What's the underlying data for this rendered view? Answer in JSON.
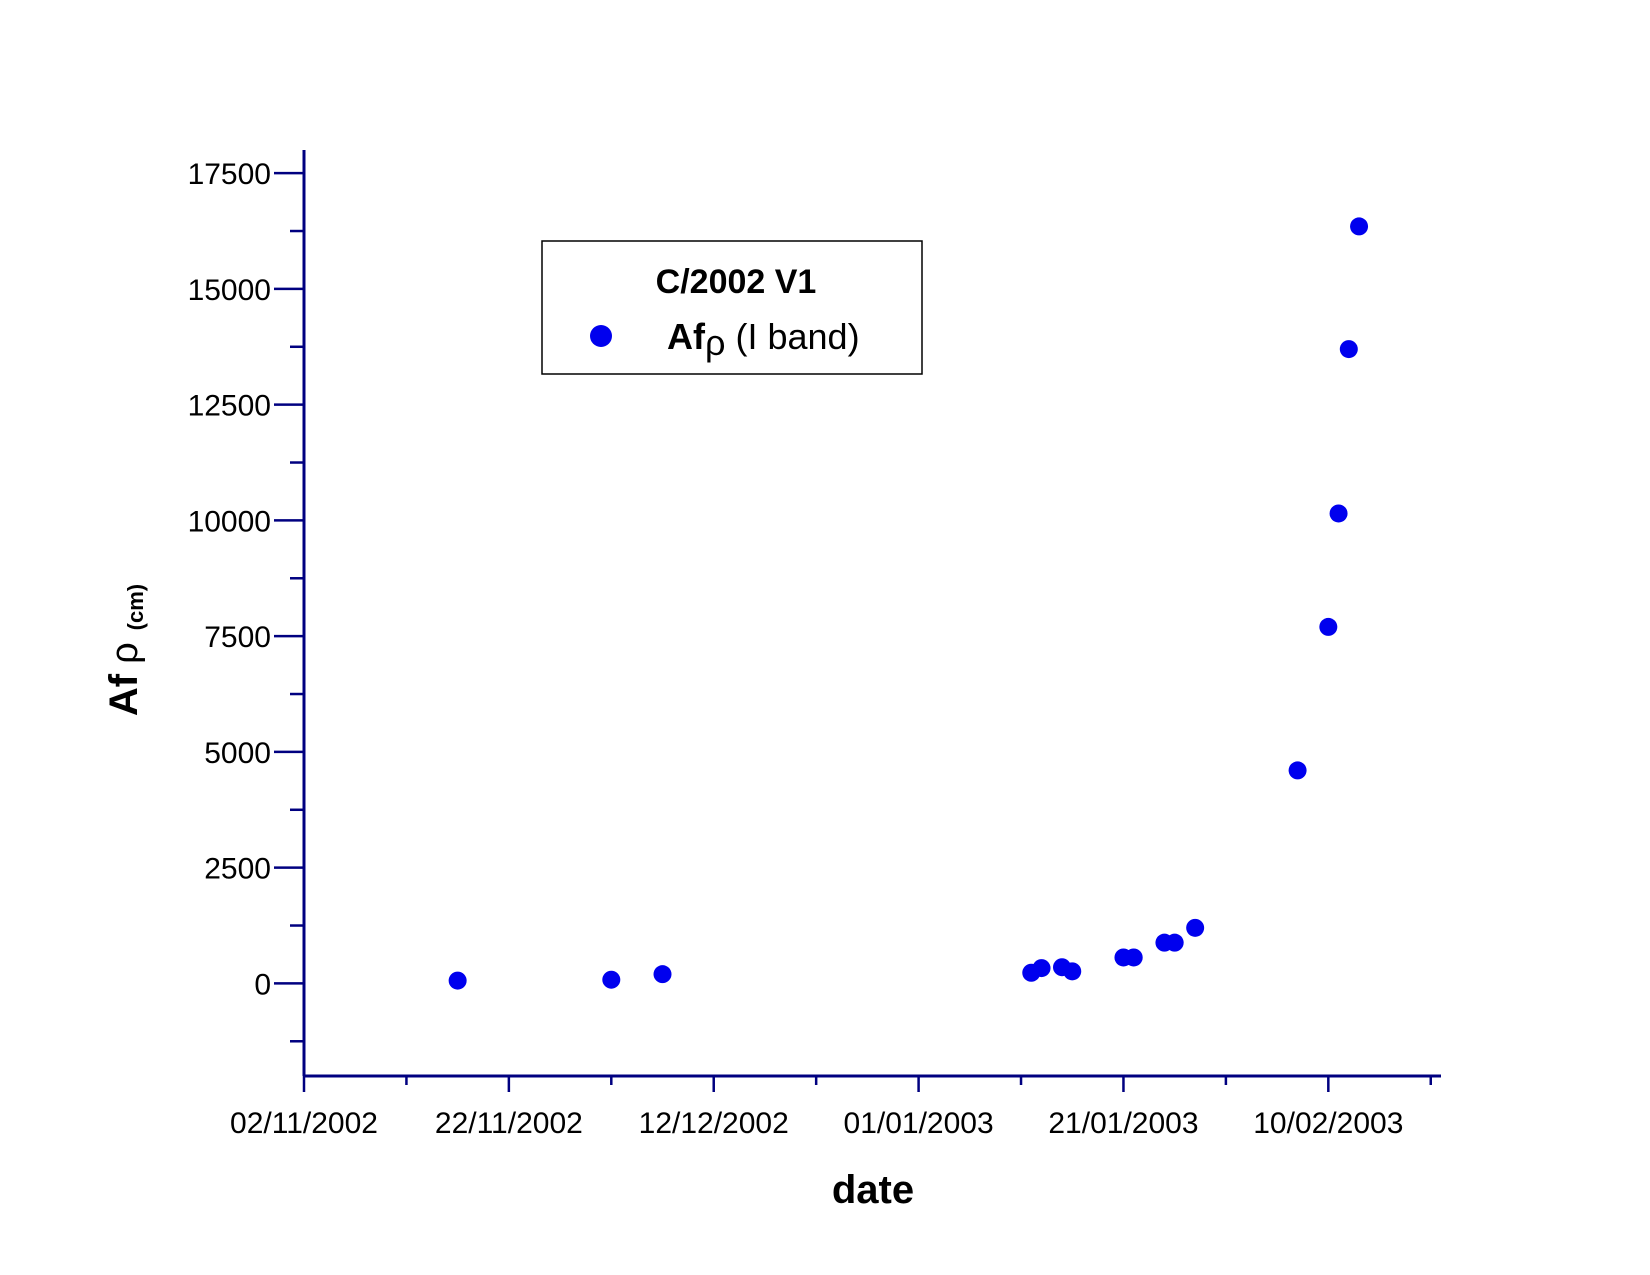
{
  "chart_data": {
    "type": "scatter",
    "xlabel_main": "date",
    "ylabel_main": "Af",
    "ylabel_symbol": "ρ",
    "ylabel_unit": "(cm)",
    "xlim": [
      "2002-11-02",
      "2003-02-21"
    ],
    "ylim": [
      -2000,
      18000
    ],
    "x_ticks": [
      "02/11/2002",
      "22/11/2002",
      "12/12/2002",
      "01/01/2003",
      "21/01/2003",
      "10/02/2003"
    ],
    "x_tick_dates": [
      "2002-11-02",
      "2002-11-22",
      "2002-12-12",
      "2003-01-01",
      "2003-01-21",
      "2003-02-10"
    ],
    "y_ticks": [
      0,
      2500,
      5000,
      7500,
      10000,
      12500,
      15000,
      17500
    ],
    "y_tick_labels": [
      "0",
      "2500",
      "5000",
      "7500",
      "10000",
      "12500",
      "15000",
      "17500"
    ],
    "grid": false,
    "legend": {
      "title": "C/2002 V1",
      "entry_main": "Af",
      "entry_symbol": "ρ",
      "entry_rest": " (I band)",
      "placement": "top-left"
    },
    "series": [
      {
        "name": "Afρ (I band)",
        "color": "#0000ee",
        "points": [
          {
            "x": "2002-11-17",
            "y": 60
          },
          {
            "x": "2002-12-02",
            "y": 80
          },
          {
            "x": "2002-12-07",
            "y": 200
          },
          {
            "x": "2003-01-12",
            "y": 230
          },
          {
            "x": "2003-01-13",
            "y": 330
          },
          {
            "x": "2003-01-15",
            "y": 350
          },
          {
            "x": "2003-01-16",
            "y": 260
          },
          {
            "x": "2003-01-21",
            "y": 560
          },
          {
            "x": "2003-01-22",
            "y": 560
          },
          {
            "x": "2003-01-25",
            "y": 880
          },
          {
            "x": "2003-01-26",
            "y": 880
          },
          {
            "x": "2003-01-28",
            "y": 1200
          },
          {
            "x": "2003-02-07",
            "y": 4600
          },
          {
            "x": "2003-02-10",
            "y": 7700
          },
          {
            "x": "2003-02-11",
            "y": 10150
          },
          {
            "x": "2003-02-12",
            "y": 13700
          },
          {
            "x": "2003-02-13",
            "y": 16350
          }
        ]
      }
    ],
    "colors": {
      "axis": "#000080",
      "marker": "#0000ee",
      "text": "#000000"
    }
  }
}
